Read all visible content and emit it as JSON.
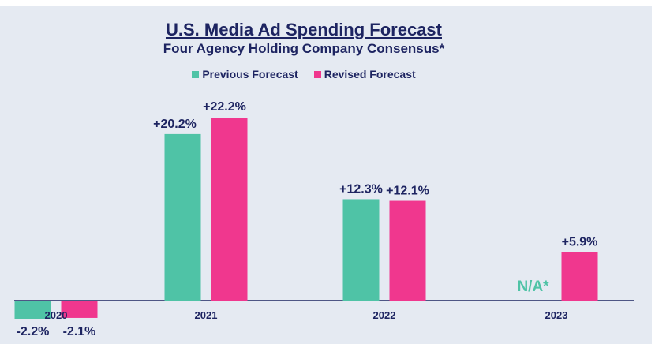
{
  "chart_data": {
    "type": "bar",
    "title": "U.S. Media Ad Spending Forecast",
    "subtitle": "Four Agency Holding Company Consensus*",
    "categories": [
      "2020",
      "2021",
      "2022",
      "2023"
    ],
    "series": [
      {
        "name": "Previous Forecast",
        "color": "#4fc3a6",
        "values": [
          -2.2,
          20.2,
          12.3,
          null
        ],
        "labels": [
          "-2.2%",
          "+20.2%",
          "+12.3%",
          "N/A*"
        ]
      },
      {
        "name": "Revised Forecast",
        "color": "#f0378e",
        "values": [
          -2.1,
          22.2,
          12.1,
          5.9
        ],
        "labels": [
          "-2.1%",
          "+22.2%",
          "+12.1%",
          "+5.9%"
        ]
      }
    ],
    "xlabel": "",
    "ylabel": "",
    "ylim": [
      -2.2,
      22.2
    ],
    "grid": false,
    "legend_position": "top"
  }
}
